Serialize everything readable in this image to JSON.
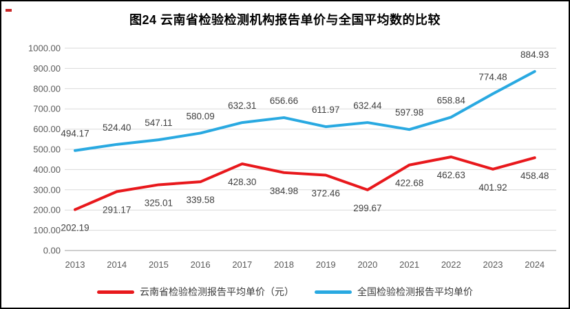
{
  "title": "图24 云南省检验检测机构报告单价与全国平均数的比较",
  "chart_data": {
    "type": "line",
    "title": "图24 云南省检验检测机构报告单价与全国平均数的比较",
    "categories": [
      "2013",
      "2014",
      "2015",
      "2016",
      "2017",
      "2018",
      "2019",
      "2020",
      "2021",
      "2022",
      "2023",
      "2024"
    ],
    "series": [
      {
        "name": "云南省检验检测报告平均单价（元）",
        "color": "#e8181c",
        "label_position": "below",
        "values": [
          202.19,
          291.17,
          325.01,
          339.58,
          428.3,
          384.98,
          372.46,
          299.67,
          422.68,
          462.63,
          401.92,
          458.48
        ]
      },
      {
        "name": "全国检验检测报告平均单价",
        "color": "#29a9e1",
        "label_position": "above",
        "values": [
          494.17,
          524.4,
          547.11,
          580.09,
          632.31,
          656.66,
          611.97,
          632.44,
          597.98,
          658.84,
          774.48,
          884.93
        ]
      }
    ],
    "ylim": [
      0,
      1000
    ],
    "ytick_step": 100,
    "yticks": [
      "0.00",
      "100.00",
      "200.00",
      "300.00",
      "400.00",
      "500.00",
      "600.00",
      "700.00",
      "800.00",
      "900.00",
      "1000.00"
    ],
    "grid": true,
    "legend_position": "bottom",
    "colors": {
      "grid": "#d9d9d9",
      "axis": "#bfbfbf",
      "tick_label": "#595959",
      "data_label": "#404040"
    }
  }
}
